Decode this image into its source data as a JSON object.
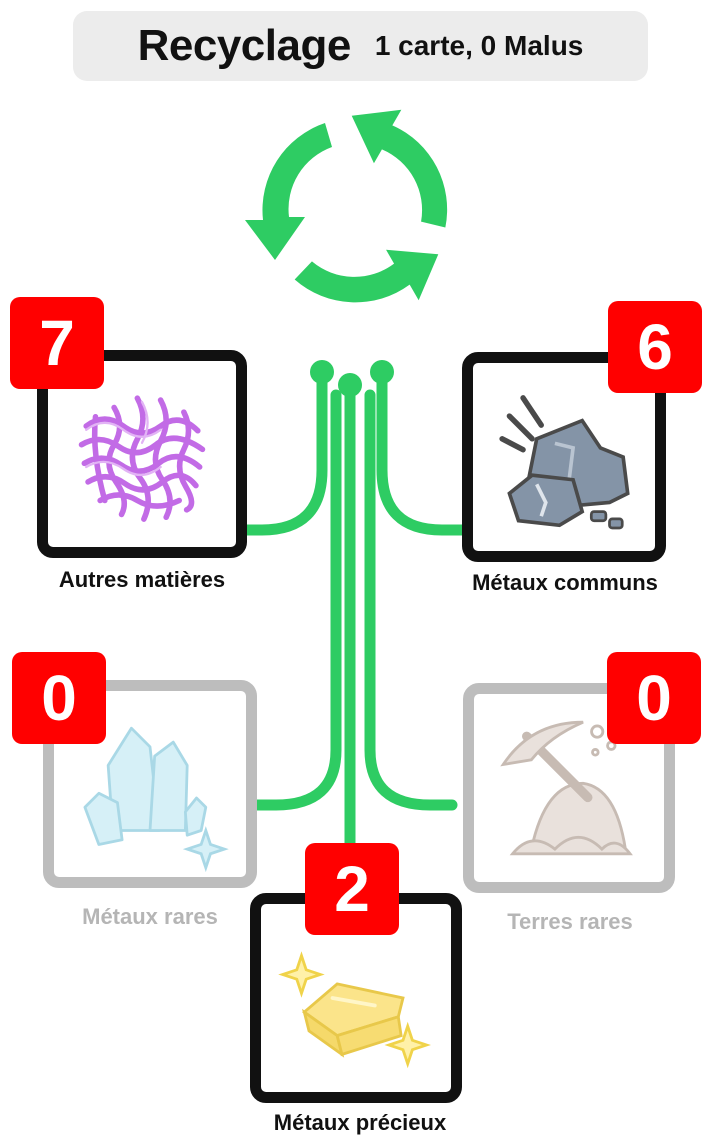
{
  "header": {
    "title": "Recyclage",
    "subtitle": "1 carte, 0 Malus"
  },
  "categories": [
    {
      "label": "Autres matières",
      "count": "7",
      "dimmed": false,
      "icon": "fiber-mesh-icon"
    },
    {
      "label": "Métaux communs",
      "count": "6",
      "dimmed": false,
      "icon": "rock-ore-icon"
    },
    {
      "label": "Métaux rares",
      "count": "0",
      "dimmed": true,
      "icon": "crystal-icon"
    },
    {
      "label": "Terres rares",
      "count": "0",
      "dimmed": true,
      "icon": "pickaxe-mound-icon"
    },
    {
      "label": "Métaux précieux",
      "count": "2",
      "dimmed": false,
      "icon": "gold-ingot-icon"
    }
  ],
  "colors": {
    "accent_green": "#2ecc63",
    "badge_red": "#ff0000",
    "frame": "#111111",
    "frame_dim": "#bdbdbd"
  }
}
